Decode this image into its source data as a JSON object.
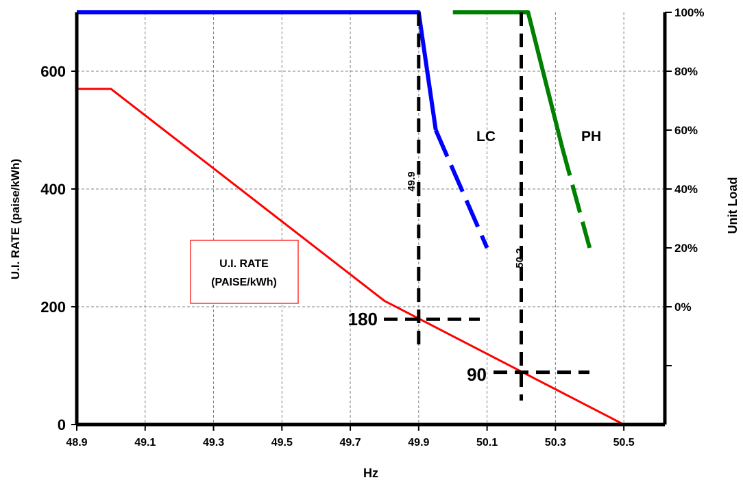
{
  "chart_data": {
    "type": "line",
    "xlabel": "Hz",
    "ylabel_left": "U.I. RATE (paise/kWh)",
    "ylabel_right": "Unit Load",
    "x_tick_labels": [
      "48.9",
      "49.1",
      "49.3",
      "49.5",
      "49.7",
      "49.9",
      "50.1",
      "50.3",
      "50.5"
    ],
    "x_ticks": [
      48.9,
      49.1,
      49.3,
      49.5,
      49.7,
      49.9,
      50.1,
      50.3,
      50.5
    ],
    "xlim": [
      48.9,
      50.62
    ],
    "y_left_tick_labels": [
      "0",
      "200",
      "400",
      "600"
    ],
    "y_left_ticks": [
      0,
      200,
      400,
      600
    ],
    "ylim_left": [
      0,
      700
    ],
    "y_right_tick_labels": [
      "0%",
      "20%",
      "40%",
      "60%",
      "80%",
      "100%"
    ],
    "y_right_ticks": [
      200,
      300,
      400,
      500,
      600,
      700
    ],
    "grid": true,
    "series": [
      {
        "name": "U.I. RATE (PAISE/kWh)",
        "color": "#ff0000",
        "style": "solid",
        "points": [
          [
            48.9,
            570
          ],
          [
            49.0,
            570
          ],
          [
            49.8,
            210
          ],
          [
            49.9,
            180
          ],
          [
            50.2,
            90
          ],
          [
            50.5,
            0
          ],
          [
            50.6,
            0
          ]
        ]
      },
      {
        "name": "LC",
        "color": "#0000ff",
        "style": "solid-then-dashed",
        "points": [
          [
            48.9,
            700
          ],
          [
            49.9,
            700
          ],
          [
            49.95,
            500
          ],
          [
            50.1,
            300
          ]
        ]
      },
      {
        "name": "PH",
        "color": "#008000",
        "style": "solid-then-dashed",
        "points": [
          [
            50.0,
            700
          ],
          [
            50.22,
            700
          ],
          [
            50.32,
            470
          ],
          [
            50.4,
            300
          ]
        ]
      }
    ],
    "annotations": [
      {
        "text": "49.9",
        "type": "vertical-line",
        "x": 49.9
      },
      {
        "text": "50.2",
        "type": "vertical-line",
        "x": 50.2
      },
      {
        "text": "180",
        "type": "horizontal-line",
        "y": 180
      },
      {
        "text": "90",
        "type": "horizontal-line",
        "y": 90
      },
      {
        "text": "LC",
        "type": "series-label"
      },
      {
        "text": "PH",
        "type": "series-label"
      }
    ],
    "legend_box": "U.I. RATE\n(PAISE/kWh)"
  }
}
